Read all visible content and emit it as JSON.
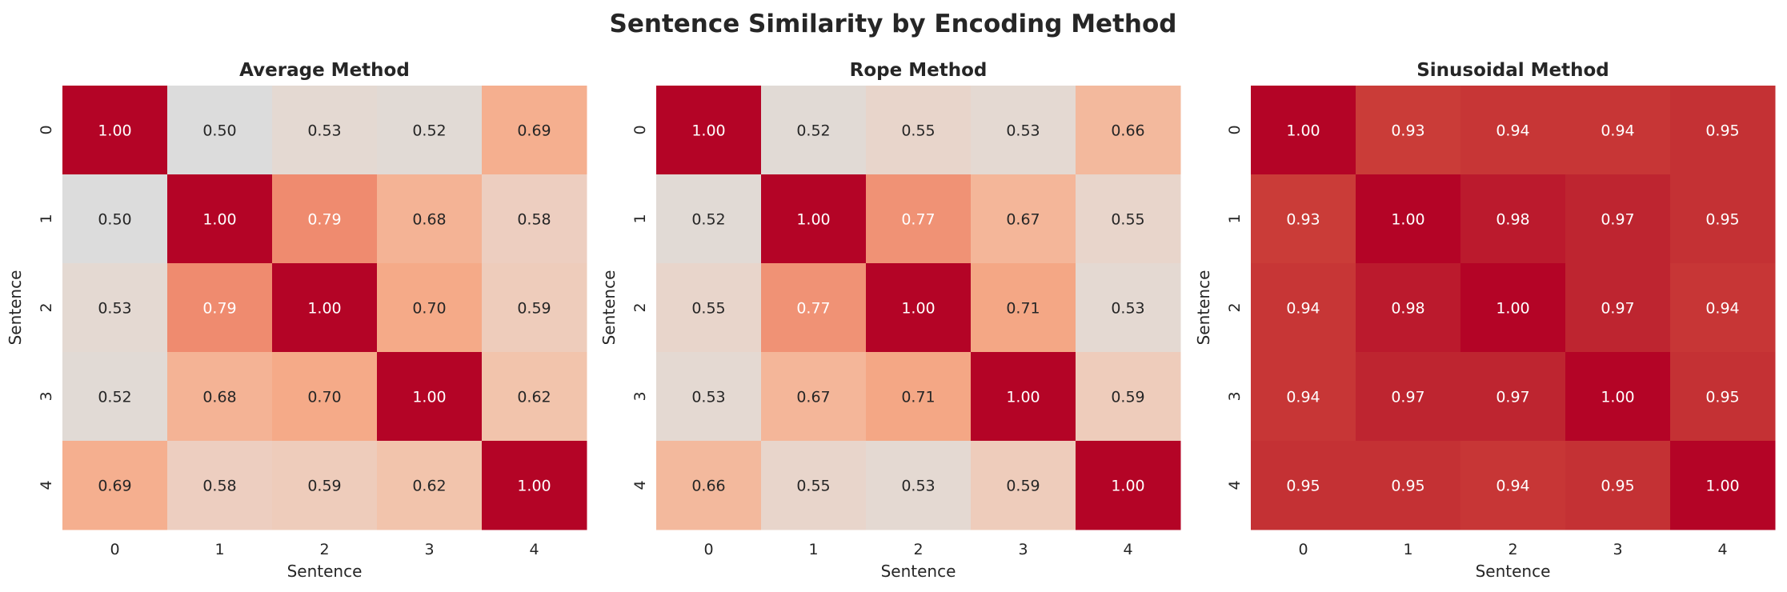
{
  "chart_data": {
    "title": "Sentence Similarity by Encoding Method",
    "panels": [
      {
        "type": "heatmap",
        "title": "Average Method",
        "xlabel": "Sentence",
        "ylabel": "Sentence",
        "x_ticks": [
          "0",
          "1",
          "2",
          "3",
          "4"
        ],
        "y_ticks": [
          "0",
          "1",
          "2",
          "3",
          "4"
        ],
        "values": [
          [
            1.0,
            0.5,
            0.53,
            0.52,
            0.69
          ],
          [
            0.5,
            1.0,
            0.79,
            0.68,
            0.58
          ],
          [
            0.53,
            0.79,
            1.0,
            0.7,
            0.59
          ],
          [
            0.52,
            0.68,
            0.7,
            1.0,
            0.62
          ],
          [
            0.69,
            0.58,
            0.59,
            0.62,
            1.0
          ]
        ]
      },
      {
        "type": "heatmap",
        "title": "Rope Method",
        "xlabel": "Sentence",
        "ylabel": "Sentence",
        "x_ticks": [
          "0",
          "1",
          "2",
          "3",
          "4"
        ],
        "y_ticks": [
          "0",
          "1",
          "2",
          "3",
          "4"
        ],
        "values": [
          [
            1.0,
            0.52,
            0.55,
            0.53,
            0.66
          ],
          [
            0.52,
            1.0,
            0.77,
            0.67,
            0.55
          ],
          [
            0.55,
            0.77,
            1.0,
            0.71,
            0.53
          ],
          [
            0.53,
            0.67,
            0.71,
            1.0,
            0.59
          ],
          [
            0.66,
            0.55,
            0.53,
            0.59,
            1.0
          ]
        ]
      },
      {
        "type": "heatmap",
        "title": "Sinusoidal Method",
        "xlabel": "Sentence",
        "ylabel": "Sentence",
        "x_ticks": [
          "0",
          "1",
          "2",
          "3",
          "4"
        ],
        "y_ticks": [
          "0",
          "1",
          "2",
          "3",
          "4"
        ],
        "values": [
          [
            1.0,
            0.93,
            0.94,
            0.94,
            0.95
          ],
          [
            0.93,
            1.0,
            0.98,
            0.97,
            0.95
          ],
          [
            0.94,
            0.98,
            1.0,
            0.97,
            0.94
          ],
          [
            0.94,
            0.97,
            0.97,
            1.0,
            0.95
          ],
          [
            0.95,
            0.95,
            0.94,
            0.95,
            1.0
          ]
        ]
      }
    ],
    "colormap": "coolwarm",
    "value_format": "2 decimals",
    "colorbar": false,
    "grid": false
  }
}
